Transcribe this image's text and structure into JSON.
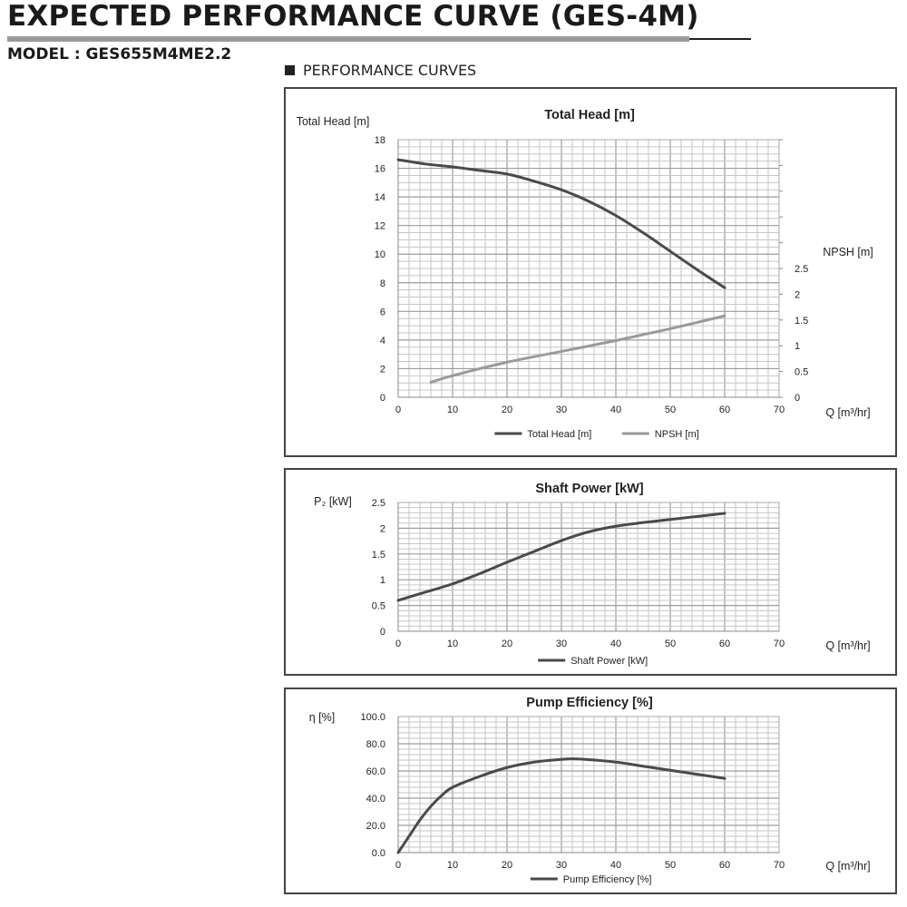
{
  "header": {
    "title": "EXPECTED PERFORMANCE CURVE (GES-4M)",
    "model": "MODEL : GES655M4ME2.2",
    "section": "PERFORMANCE CURVES"
  },
  "colors": {
    "dark_series": "#4a4a4a",
    "light_series": "#9a9a9a",
    "grid": "#bdbdbd"
  },
  "chart_data": [
    {
      "type": "line",
      "title": "Total Head [m]",
      "ylabel": "Total Head [m]",
      "xlabel": "Q [m³/hr]",
      "xlim": [
        0,
        70
      ],
      "xticks": [
        "0",
        "10",
        "20",
        "30",
        "40",
        "50",
        "60",
        "70"
      ],
      "ylim": [
        0,
        18
      ],
      "yticks": [
        "0",
        "2",
        "4",
        "6",
        "8",
        "10",
        "12",
        "14",
        "16",
        "18"
      ],
      "y2label": "NPSH [m]",
      "y2lim": [
        0,
        5
      ],
      "y2ticks": [
        "0",
        "0.5",
        "1",
        "1.5",
        "2",
        "2.5"
      ],
      "grid": true,
      "legend": "bottom",
      "series": [
        {
          "name": "Total Head [m]",
          "axis": "y",
          "color": "#4a4a4a",
          "x": [
            0,
            5,
            10,
            15,
            20,
            25,
            30,
            35,
            40,
            45,
            50,
            55,
            60
          ],
          "y": [
            16.6,
            16.3,
            16.1,
            15.85,
            15.6,
            15.1,
            14.5,
            13.7,
            12.7,
            11.5,
            10.2,
            8.9,
            7.65
          ]
        },
        {
          "name": "NPSH [m]",
          "axis": "y2",
          "color": "#9a9a9a",
          "x": [
            6,
            10,
            20,
            30,
            40,
            50,
            60
          ],
          "y": [
            0.29,
            0.42,
            0.68,
            0.89,
            1.1,
            1.33,
            1.58
          ]
        }
      ]
    },
    {
      "type": "line",
      "title": "Shaft Power [kW]",
      "ylabel": "P₂ [kW]",
      "xlabel": "Q [m³/hr]",
      "xlim": [
        0,
        70
      ],
      "xticks": [
        "0",
        "10",
        "20",
        "30",
        "40",
        "50",
        "60",
        "70"
      ],
      "ylim": [
        0,
        2.5
      ],
      "yticks": [
        "0",
        "0.5",
        "1",
        "1.5",
        "2",
        "2.5"
      ],
      "grid": true,
      "legend": "bottom",
      "series": [
        {
          "name": "Shaft Power [kW]",
          "axis": "y",
          "color": "#4a4a4a",
          "x": [
            0,
            5,
            10,
            15,
            20,
            25,
            30,
            35,
            40,
            45,
            50,
            55,
            60
          ],
          "y": [
            0.6,
            0.76,
            0.92,
            1.12,
            1.34,
            1.55,
            1.76,
            1.93,
            2.04,
            2.11,
            2.17,
            2.23,
            2.29
          ]
        }
      ]
    },
    {
      "type": "line",
      "title": "Pump Efficiency [%]",
      "ylabel": "η [%]",
      "xlabel": "Q [m³/hr]",
      "xlim": [
        0,
        70
      ],
      "xticks": [
        "0",
        "10",
        "20",
        "30",
        "40",
        "50",
        "60",
        "70"
      ],
      "ylim": [
        0,
        100
      ],
      "yticks": [
        "0.0",
        "20.0",
        "40.0",
        "60.0",
        "80.0",
        "100.0"
      ],
      "grid": true,
      "legend": "bottom",
      "series": [
        {
          "name": "Pump Efficiency [%]",
          "axis": "y",
          "color": "#4a4a4a",
          "x": [
            0,
            2,
            4,
            6,
            8,
            10,
            15,
            20,
            25,
            30,
            33,
            40,
            45,
            50,
            55,
            60
          ],
          "y": [
            0,
            12,
            24,
            34,
            42,
            48,
            56,
            62.5,
            66.5,
            68.5,
            68.8,
            66.5,
            63.5,
            60.5,
            57.5,
            54.5
          ]
        }
      ]
    }
  ]
}
